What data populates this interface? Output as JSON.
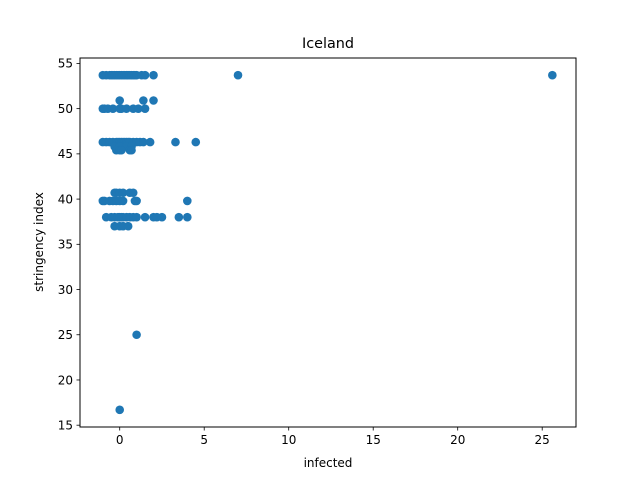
{
  "chart_data": {
    "type": "scatter",
    "title": "Iceland",
    "xlabel": "infected",
    "ylabel": "stringency index",
    "xlim": [
      -2.35,
      27.0
    ],
    "ylim": [
      14.8,
      55.6
    ],
    "xticks": [
      0,
      5,
      10,
      15,
      20,
      25
    ],
    "yticks": [
      15,
      20,
      25,
      30,
      35,
      40,
      45,
      50,
      55
    ],
    "grid": false,
    "marker_color": "#1f77b4",
    "series": [
      {
        "points": [
          [
            -1.0,
            53.7
          ],
          [
            -0.8,
            53.7
          ],
          [
            -0.6,
            53.7
          ],
          [
            -0.5,
            53.7
          ],
          [
            -0.4,
            53.7
          ],
          [
            -0.3,
            53.7
          ],
          [
            -0.2,
            53.7
          ],
          [
            -0.1,
            53.7
          ],
          [
            0.0,
            53.7
          ],
          [
            0.1,
            53.7
          ],
          [
            0.2,
            53.7
          ],
          [
            0.3,
            53.7
          ],
          [
            0.4,
            53.7
          ],
          [
            0.5,
            53.7
          ],
          [
            0.6,
            53.7
          ],
          [
            0.7,
            53.7
          ],
          [
            0.8,
            53.7
          ],
          [
            0.9,
            53.7
          ],
          [
            1.0,
            53.7
          ],
          [
            1.3,
            53.7
          ],
          [
            1.5,
            53.7
          ],
          [
            2.0,
            53.7
          ],
          [
            7.0,
            53.7
          ],
          [
            25.6,
            53.7
          ],
          [
            -1.0,
            50.0
          ],
          [
            -0.9,
            50.0
          ],
          [
            -0.7,
            50.0
          ],
          [
            -0.4,
            50.0
          ],
          [
            0.0,
            50.0
          ],
          [
            0.1,
            50.0
          ],
          [
            0.4,
            50.0
          ],
          [
            0.8,
            50.0
          ],
          [
            1.1,
            50.0
          ],
          [
            1.5,
            50.0
          ],
          [
            0.0,
            50.9
          ],
          [
            1.4,
            50.9
          ],
          [
            2.0,
            50.9
          ],
          [
            -1.0,
            46.3
          ],
          [
            -0.8,
            46.3
          ],
          [
            -0.6,
            46.3
          ],
          [
            -0.4,
            46.3
          ],
          [
            -0.2,
            46.3
          ],
          [
            -0.1,
            46.3
          ],
          [
            0.0,
            46.3
          ],
          [
            0.1,
            46.3
          ],
          [
            0.2,
            46.3
          ],
          [
            0.3,
            46.3
          ],
          [
            0.4,
            46.3
          ],
          [
            0.5,
            46.3
          ],
          [
            0.6,
            46.3
          ],
          [
            0.8,
            46.3
          ],
          [
            1.0,
            46.3
          ],
          [
            1.2,
            46.3
          ],
          [
            1.4,
            46.3
          ],
          [
            1.8,
            46.3
          ],
          [
            3.3,
            46.3
          ],
          [
            4.5,
            46.3
          ],
          [
            -0.3,
            45.8
          ],
          [
            0.0,
            45.8
          ],
          [
            0.4,
            45.8
          ],
          [
            0.7,
            45.8
          ],
          [
            -0.2,
            45.4
          ],
          [
            0.0,
            45.4
          ],
          [
            0.1,
            45.4
          ],
          [
            0.6,
            45.4
          ],
          [
            0.7,
            45.4
          ],
          [
            -0.3,
            40.7
          ],
          [
            -0.2,
            40.7
          ],
          [
            0.0,
            40.7
          ],
          [
            0.2,
            40.7
          ],
          [
            0.6,
            40.7
          ],
          [
            0.8,
            40.7
          ],
          [
            -1.0,
            39.8
          ],
          [
            -0.9,
            39.8
          ],
          [
            -0.6,
            39.8
          ],
          [
            -0.4,
            39.8
          ],
          [
            -0.2,
            39.8
          ],
          [
            0.0,
            39.8
          ],
          [
            0.2,
            39.8
          ],
          [
            0.9,
            39.8
          ],
          [
            1.0,
            39.8
          ],
          [
            4.0,
            39.8
          ],
          [
            -0.8,
            38.0
          ],
          [
            -0.5,
            38.0
          ],
          [
            -0.3,
            38.0
          ],
          [
            -0.1,
            38.0
          ],
          [
            0.0,
            38.0
          ],
          [
            0.1,
            38.0
          ],
          [
            0.2,
            38.0
          ],
          [
            0.4,
            38.0
          ],
          [
            0.6,
            38.0
          ],
          [
            0.8,
            38.0
          ],
          [
            1.0,
            38.0
          ],
          [
            1.5,
            38.0
          ],
          [
            2.0,
            38.0
          ],
          [
            2.2,
            38.0
          ],
          [
            2.5,
            38.0
          ],
          [
            3.5,
            38.0
          ],
          [
            4.0,
            38.0
          ],
          [
            -0.3,
            37.0
          ],
          [
            0.0,
            37.0
          ],
          [
            0.2,
            37.0
          ],
          [
            0.5,
            37.0
          ],
          [
            1.0,
            25.0
          ],
          [
            0.0,
            16.7
          ]
        ]
      }
    ]
  }
}
